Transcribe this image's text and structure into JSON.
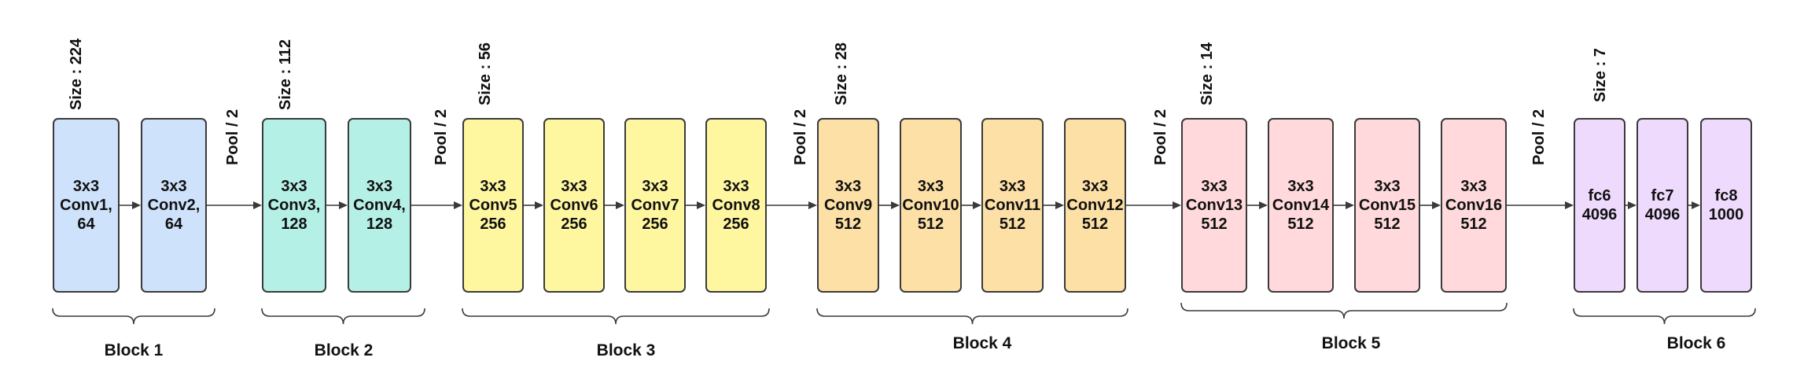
{
  "colors": {
    "block1": "#cfe2fb",
    "block2": "#b5f0e6",
    "block3": "#fff7a0",
    "block4": "#fde0a6",
    "block5": "#ffd9db",
    "block6": "#eedafd",
    "line": "#3a3a3a"
  },
  "size_labels": [
    "Size : 224",
    "Size : 112",
    "Size : 56",
    "Size : 28",
    "Size : 14",
    "Size : 7"
  ],
  "pool_labels": [
    "Pool / 2",
    "Pool / 2",
    "Pool / 2",
    "Pool / 2",
    "Pool / 2"
  ],
  "block_labels": [
    "Block 1",
    "Block 2",
    "Block 3",
    "Block 4",
    "Block 5",
    "Block 6"
  ],
  "layers": [
    "3x3\nConv1,\n64",
    "3x3\nConv2,\n64",
    "3x3\nConv3,\n128",
    "3x3\nConv4,\n128",
    "3x3\nConv5\n256",
    "3x3\nConv6\n256",
    "3x3\nConv7\n256",
    "3x3\nConv8\n256",
    "3x3\nConv9\n512",
    "3x3\nConv10\n512",
    "3x3\nConv11\n512",
    "3x3\nConv12\n512",
    "3x3\nConv13\n512",
    "3x3\nConv14\n512",
    "3x3\nConv15\n512",
    "3x3\nConv16\n512",
    "fc6\n4096",
    "fc7\n4096",
    "fc8\n1000"
  ]
}
